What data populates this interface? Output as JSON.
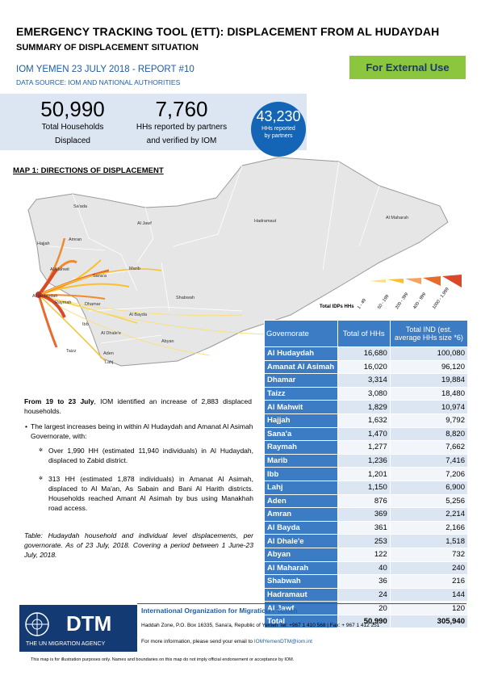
{
  "header": {
    "title": "EMERGENCY TRACKING TOOL (ETT): DISPLACEMENT FROM AL HUDAYDAH",
    "subtitle": "SUMMARY OF DISPLACEMENT SITUATION",
    "report": "IOM YEMEN 23 JULY 2018 - REPORT #10",
    "data_source": "DATA SOURCE: IOM AND NATIONAL AUTHORITIES",
    "badge": "For External Use",
    "badge_color": "#8cc63f"
  },
  "stats": {
    "total_households": {
      "value": "50,990",
      "label_line1": "Total Households",
      "label_line2": "Displaced"
    },
    "partners_verified": {
      "value": "7,760",
      "label_line1": "HHs reported by partners",
      "label_line2": "and verified by IOM"
    },
    "partners_reported": {
      "value": "43,230",
      "label_line1": "HHs reported",
      "label_line2": "by partners"
    }
  },
  "map": {
    "title": "MAP 1: DIRECTIONS OF DISPLACEMENT",
    "places": {
      "sada": "Sa'ada",
      "al_jawf": "Al Jawf",
      "hadramaut": "Hadramaut",
      "al_maharah": "Al Maharah",
      "hajjah": "Hajjah",
      "amran": "Amran",
      "al_mahwit": "Al Mahwit",
      "sanaa": "Sana'a",
      "marib": "Marib",
      "al_hudaydah": "Al Hudaydah",
      "raymah": "Raymah",
      "dhamar": "Dhamar",
      "shabwah": "Shabwah",
      "al_bayda": "Al Bayda",
      "ibb": "Ibb",
      "al_dhale": "Al Dhale'e",
      "abyan": "Abyan",
      "taizz": "Taizz",
      "lahj": "Lahj",
      "aden": "Aden"
    },
    "legend": {
      "title": "Total IDPs HHs",
      "classes": [
        "1 - 49",
        "50 - 199",
        "200 - 399",
        "400 - 999",
        "1000 - 1,999"
      ]
    }
  },
  "table": {
    "headers": [
      "Governorate",
      "Total of HHs",
      "Total IND (est. average HHs size *6)"
    ],
    "rows": [
      [
        "Al Hudaydah",
        "16,680",
        "100,080"
      ],
      [
        "Amanat Al Asimah",
        "16,020",
        "96,120"
      ],
      [
        "Dhamar",
        "3,314",
        "19,884"
      ],
      [
        "Taizz",
        "3,080",
        "18,480"
      ],
      [
        "Al Mahwit",
        "1,829",
        "10,974"
      ],
      [
        "Hajjah",
        "1,632",
        "9,792"
      ],
      [
        "Sana'a",
        "1,470",
        "8,820"
      ],
      [
        "Raymah",
        "1,277",
        "7,662"
      ],
      [
        "Marib",
        "1,236",
        "7,416"
      ],
      [
        "Ibb",
        "1,201",
        "7,206"
      ],
      [
        "Lahj",
        "1,150",
        "6,900"
      ],
      [
        "Aden",
        "876",
        "5,256"
      ],
      [
        "Amran",
        "369",
        "2,214"
      ],
      [
        "Al Bayda",
        "361",
        "2,166"
      ],
      [
        "Al Dhale'e",
        "253",
        "1,518"
      ],
      [
        "Abyan",
        "122",
        "732"
      ],
      [
        "Al Maharah",
        "40",
        "240"
      ],
      [
        "Shabwah",
        "36",
        "216"
      ],
      [
        "Hadramaut",
        "24",
        "144"
      ],
      [
        "Al Jawf",
        "20",
        "120"
      ]
    ],
    "total": [
      "Total",
      "50,990",
      "305,940"
    ]
  },
  "narrative": {
    "intro_bold": "From 19 to 23 July",
    "intro_rest": ", IOM identified an increase of 2,883 displaced households.",
    "bullet": "The largest increases being in within Al Hudaydah and Amanat Al Asimah Governorate, with:",
    "sub1": "Over 1,990 HH (estimated 11,940 individuals) in Al Hudaydah, displaced to Zabid district.",
    "sub2": "313 HH (estimated 1,878 individuals) in Amanat Al Asimah, displaced to Al Ma'an, As Sabain and Bani Al Harith districts. Households reached Amant Al Asimah by bus using Manakhah road access.",
    "caption": "Table: Hudaydah household and individual level displacements, per governorate. As of 23 July, 2018. Covering a period between 1 June-23 July, 2018."
  },
  "footer": {
    "logo_text": "DTM",
    "logo_sub": "THE UN MIGRATION AGENCY",
    "org": "International Organization for Migration",
    "org_country": "Yemen",
    "address": "Haddah Zone, P.O. Box 16335, Sana'a, Republic of Yemen  Tel: +967 1 410 568 |  Fax: + 967 1 412 251",
    "more_info": "For more information, please send your email to ",
    "email": "IOMYemenDTM@iom.int",
    "disclaimer": "This map is for illustration purposes only. Names and boundaries on this map do not imply official endorsement or acceptance by IOM."
  }
}
